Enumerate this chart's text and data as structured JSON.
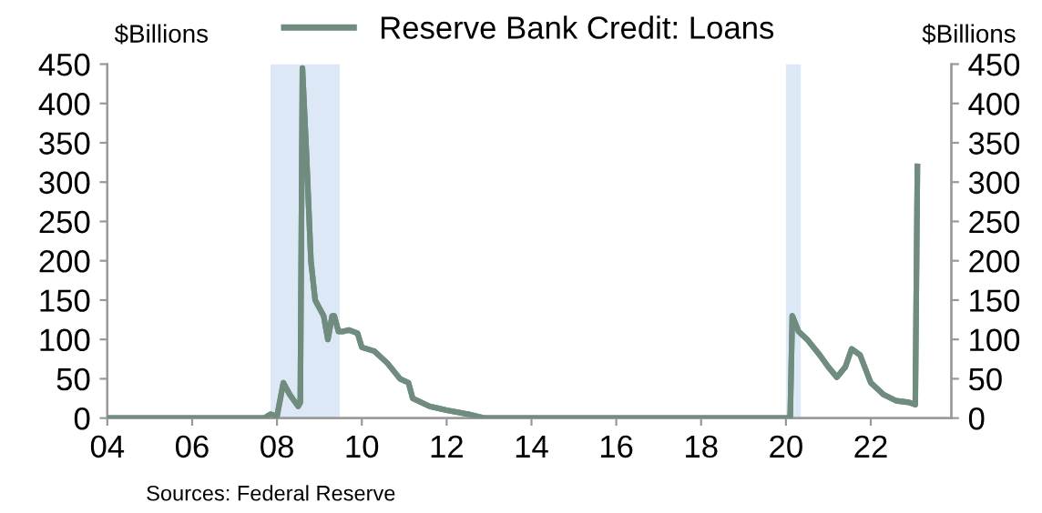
{
  "chart_data": {
    "type": "line",
    "x": [
      2004,
      2007.7,
      2007.85,
      2008.0,
      2008.15,
      2008.3,
      2008.5,
      2008.55,
      2008.6,
      2008.7,
      2008.8,
      2008.9,
      2009.0,
      2009.1,
      2009.2,
      2009.3,
      2009.35,
      2009.45,
      2009.55,
      2009.7,
      2009.9,
      2010.0,
      2010.3,
      2010.6,
      2010.9,
      2011.1,
      2011.2,
      2011.6,
      2012.0,
      2012.5,
      2012.9,
      2020.1,
      2020.15,
      2020.3,
      2020.5,
      2020.8,
      2021.0,
      2021.2,
      2021.4,
      2021.55,
      2021.75,
      2022.0,
      2022.3,
      2022.6,
      2022.9,
      2023.05,
      2023.1
    ],
    "series": [
      {
        "name": "Reserve Bank Credit: Loans",
        "color": "#6f8c7f",
        "values": [
          0,
          0,
          5,
          2,
          45,
          30,
          15,
          20,
          445,
          330,
          200,
          150,
          140,
          130,
          100,
          130,
          130,
          110,
          110,
          112,
          108,
          90,
          85,
          70,
          50,
          45,
          25,
          15,
          10,
          5,
          0,
          0,
          130,
          110,
          100,
          80,
          65,
          52,
          65,
          88,
          80,
          45,
          30,
          22,
          20,
          17,
          320
        ]
      },
      {
        "axis": "y2",
        "color": "#6f8c7f",
        "values": [
          0,
          0,
          5,
          2,
          45,
          30,
          15,
          20,
          445,
          330,
          200,
          150,
          140,
          130,
          100,
          130,
          130,
          110,
          110,
          112,
          108,
          90,
          85,
          70,
          50,
          45,
          25,
          15,
          10,
          5,
          0,
          0,
          130,
          110,
          100,
          80,
          65,
          52,
          65,
          88,
          80,
          45,
          30,
          22,
          20,
          17,
          320
        ]
      }
    ],
    "xlim": [
      2004,
      2023.9
    ],
    "xticks": [
      {
        "value": 2004,
        "label": "04"
      },
      {
        "value": 2006,
        "label": "06"
      },
      {
        "value": 2008,
        "label": "08"
      },
      {
        "value": 2010,
        "label": "10"
      },
      {
        "value": 2012,
        "label": "12"
      },
      {
        "value": 2014,
        "label": "14"
      },
      {
        "value": 2016,
        "label": "16"
      },
      {
        "value": 2018,
        "label": "18"
      },
      {
        "value": 2020,
        "label": "20"
      },
      {
        "value": 2022,
        "label": "22"
      }
    ],
    "ylim": [
      0,
      450
    ],
    "yticks": [
      0,
      50,
      100,
      150,
      200,
      250,
      300,
      350,
      400,
      450
    ],
    "y2lim": [
      0,
      450
    ],
    "y2ticks": [
      0,
      50,
      100,
      150,
      200,
      250,
      300,
      350,
      400,
      450
    ],
    "ylabel": "$Billions",
    "y2label": "$Billions",
    "bands": [
      {
        "axis": "x",
        "from": 2007.85,
        "to": 2009.48,
        "color": "#dce8f5"
      },
      {
        "axis": "x",
        "from": 2020.0,
        "to": 2020.35,
        "color": "#dce8f5"
      }
    ],
    "legend": "top",
    "grid": false,
    "marker": "none",
    "line_style": "solid",
    "annotations": [
      "Sources: Federal Reserve"
    ]
  }
}
